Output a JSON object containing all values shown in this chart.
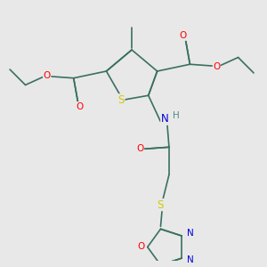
{
  "bg_color": "#e8e8e8",
  "bond_color": "#3a7060",
  "bond_width": 1.2,
  "dbo": 0.012,
  "atom_colors": {
    "S": "#cccc00",
    "O": "#ff0000",
    "N": "#0000dd",
    "H": "#558888",
    "C": "#3a7060"
  },
  "fs": 7.5
}
